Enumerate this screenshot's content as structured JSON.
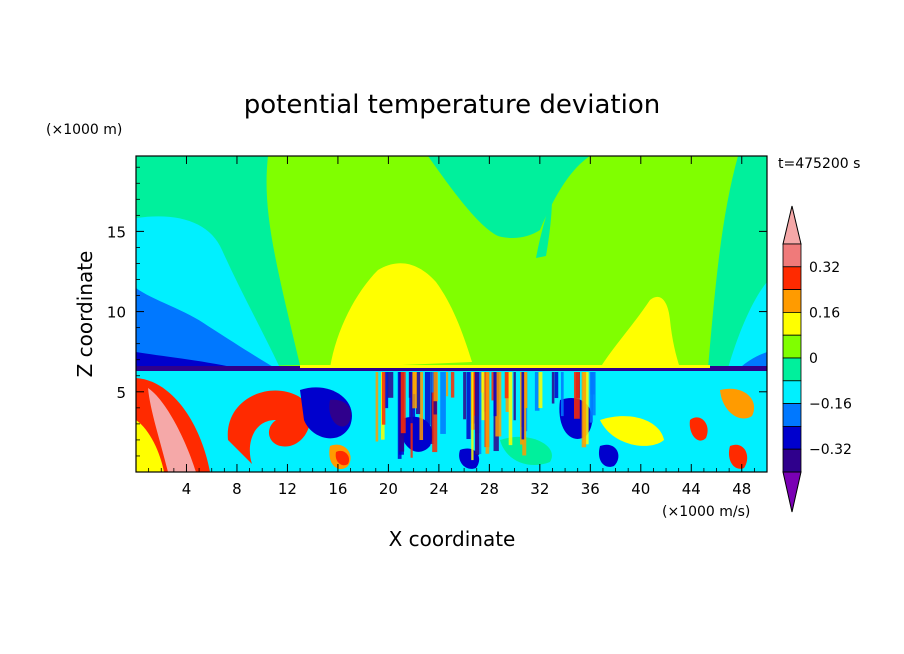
{
  "chart_data": {
    "type": "heatmap",
    "title": "potential temperature deviation",
    "xlabel": "X coordinate",
    "ylabel": "Z coordinate",
    "x_unit": "(×1000 m/s)",
    "y_unit": "(×1000 m)",
    "time_label": "t=475200 s",
    "xlim": [
      0,
      50
    ],
    "ylim": [
      0,
      19.7
    ],
    "x_ticks": [
      "4",
      "8",
      "12",
      "16",
      "20",
      "24",
      "28",
      "32",
      "36",
      "40",
      "44",
      "48"
    ],
    "x_tick_values": [
      4,
      8,
      12,
      16,
      20,
      24,
      28,
      32,
      36,
      40,
      44,
      48
    ],
    "y_ticks": [
      "5",
      "10",
      "15"
    ],
    "y_tick_values": [
      5,
      10,
      15
    ],
    "colorbar": {
      "labels": [
        "0.32",
        "0.16",
        "0",
        "−0.16",
        "−0.32"
      ],
      "label_values": [
        0.32,
        0.16,
        0,
        -0.16,
        -0.32
      ],
      "levels": [
        -0.4,
        -0.32,
        -0.24,
        -0.16,
        -0.08,
        0,
        0.08,
        0.16,
        0.24,
        0.32,
        0.4
      ],
      "colors": [
        "#7a00b4",
        "#2f008c",
        "#0000cd",
        "#0078ff",
        "#00f0ff",
        "#00f09c",
        "#80ff00",
        "#ffff00",
        "#ff9b00",
        "#ff2a00",
        "#f07a7a",
        "#f5a8a8"
      ]
    },
    "grid": false
  }
}
